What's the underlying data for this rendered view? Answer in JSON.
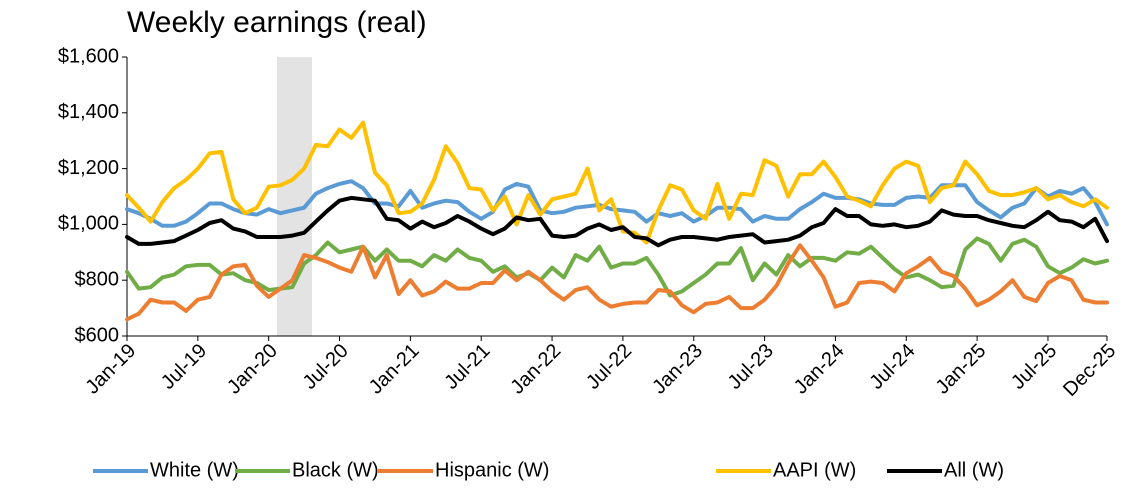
{
  "chart_data": {
    "type": "line",
    "title": "Weekly earnings (real)",
    "categories": [
      "Jan-19",
      null,
      null,
      null,
      null,
      null,
      "Jul-19",
      null,
      null,
      null,
      null,
      null,
      "Jan-20",
      null,
      null,
      null,
      null,
      null,
      "Jul-20",
      null,
      null,
      null,
      null,
      null,
      "Jan-21",
      null,
      null,
      null,
      null,
      null,
      "Jul-21",
      null,
      null,
      null,
      null,
      null,
      "Jan-22",
      null,
      null,
      null,
      null,
      null,
      "Jul-22",
      null,
      null,
      null,
      null,
      null,
      "Jan-23",
      null,
      null,
      null,
      null,
      null,
      "Jul-23",
      null,
      null,
      null,
      null,
      null,
      "Jan-24",
      null,
      null,
      null,
      null,
      null,
      "Jul-24",
      null,
      null,
      null,
      null,
      null,
      "Jan-25",
      null,
      null,
      null,
      null,
      null,
      "Jul-25",
      null,
      null,
      null,
      null,
      "Dec-25"
    ],
    "ylim": [
      600,
      1600
    ],
    "yticks": [
      {
        "value": 600,
        "label": "$600"
      },
      {
        "value": 800,
        "label": "$800"
      },
      {
        "value": 1000,
        "label": "$1,000"
      },
      {
        "value": 1200,
        "label": "$1,200"
      },
      {
        "value": 1400,
        "label": "$1,400"
      },
      {
        "value": 1600,
        "label": "$1,600"
      }
    ],
    "grid": false,
    "legend": "bottom",
    "series": [
      {
        "name": "White (W)",
        "color": "#5b9bd5",
        "values": [
          1055,
          1040,
          1020,
          995,
          995,
          1010,
          1040,
          1075,
          1075,
          1055,
          1040,
          1035,
          1055,
          1040,
          1050,
          1060,
          1110,
          1130,
          1145,
          1155,
          1130,
          1075,
          1075,
          1065,
          1120,
          1060,
          1075,
          1085,
          1080,
          1045,
          1020,
          1045,
          1125,
          1145,
          1135,
          1050,
          1040,
          1045,
          1060,
          1065,
          1070,
          1055,
          1050,
          1045,
          1010,
          1040,
          1030,
          1040,
          1010,
          1030,
          1060,
          1060,
          1055,
          1010,
          1030,
          1020,
          1020,
          1055,
          1080,
          1110,
          1095,
          1095,
          1090,
          1075,
          1070,
          1070,
          1095,
          1100,
          1095,
          1140,
          1140,
          1140,
          1080,
          1050,
          1025,
          1060,
          1075,
          1130,
          1100,
          1120,
          1110,
          1130,
          1080,
          1000
        ]
      },
      {
        "name": "Black (W)",
        "color": "#70ad47",
        "values": [
          830,
          770,
          775,
          810,
          820,
          850,
          855,
          855,
          820,
          825,
          800,
          790,
          765,
          770,
          775,
          860,
          890,
          935,
          900,
          910,
          920,
          870,
          910,
          870,
          870,
          850,
          890,
          870,
          910,
          880,
          870,
          830,
          850,
          810,
          825,
          800,
          845,
          810,
          890,
          870,
          920,
          845,
          860,
          860,
          880,
          820,
          745,
          760,
          790,
          820,
          860,
          860,
          915,
          800,
          860,
          820,
          890,
          850,
          880,
          880,
          870,
          900,
          895,
          920,
          880,
          840,
          810,
          820,
          800,
          775,
          780,
          910,
          950,
          930,
          870,
          930,
          945,
          920,
          850,
          825,
          845,
          875,
          860,
          870
        ]
      },
      {
        "name": "Hispanic (W)",
        "color": "#ed7d31",
        "values": [
          660,
          680,
          730,
          720,
          720,
          690,
          730,
          740,
          820,
          850,
          855,
          780,
          740,
          770,
          800,
          890,
          880,
          865,
          845,
          830,
          920,
          810,
          890,
          750,
          800,
          745,
          760,
          795,
          770,
          770,
          790,
          790,
          835,
          800,
          830,
          800,
          760,
          730,
          765,
          775,
          730,
          705,
          715,
          720,
          720,
          765,
          760,
          710,
          685,
          715,
          720,
          740,
          700,
          700,
          730,
          780,
          860,
          925,
          870,
          810,
          705,
          720,
          790,
          795,
          790,
          760,
          825,
          850,
          880,
          830,
          815,
          770,
          710,
          730,
          760,
          800,
          740,
          725,
          790,
          815,
          800,
          730,
          720,
          720
        ]
      },
      {
        "name": "AAPI (W)",
        "color": "#ffc000",
        "values": [
          1105,
          1060,
          1010,
          1080,
          1130,
          1160,
          1200,
          1255,
          1260,
          1090,
          1040,
          1060,
          1135,
          1140,
          1160,
          1200,
          1285,
          1280,
          1340,
          1310,
          1365,
          1185,
          1140,
          1040,
          1045,
          1075,
          1160,
          1280,
          1220,
          1130,
          1125,
          1050,
          1100,
          1000,
          1105,
          1035,
          1090,
          1100,
          1110,
          1200,
          1050,
          1090,
          975,
          970,
          935,
          1050,
          1140,
          1125,
          1050,
          1020,
          1145,
          1020,
          1110,
          1105,
          1230,
          1210,
          1100,
          1180,
          1180,
          1225,
          1170,
          1100,
          1085,
          1065,
          1140,
          1200,
          1225,
          1210,
          1080,
          1130,
          1140,
          1225,
          1180,
          1120,
          1105,
          1105,
          1115,
          1130,
          1090,
          1105,
          1080,
          1065,
          1090,
          1060
        ]
      },
      {
        "name": "All (W)",
        "color": "#000000",
        "values": [
          955,
          930,
          930,
          935,
          940,
          960,
          980,
          1005,
          1015,
          985,
          975,
          955,
          955,
          955,
          960,
          970,
          1010,
          1050,
          1085,
          1095,
          1090,
          1085,
          1020,
          1015,
          985,
          1010,
          990,
          1005,
          1030,
          1010,
          985,
          965,
          985,
          1025,
          1015,
          1020,
          960,
          955,
          960,
          985,
          1000,
          980,
          990,
          955,
          950,
          925,
          945,
          955,
          955,
          950,
          945,
          955,
          960,
          965,
          935,
          940,
          945,
          960,
          990,
          1005,
          1055,
          1030,
          1030,
          1000,
          995,
          1000,
          990,
          995,
          1010,
          1050,
          1035,
          1030,
          1030,
          1015,
          1005,
          995,
          990,
          1015,
          1045,
          1015,
          1010,
          990,
          1020,
          940
        ]
      }
    ]
  }
}
